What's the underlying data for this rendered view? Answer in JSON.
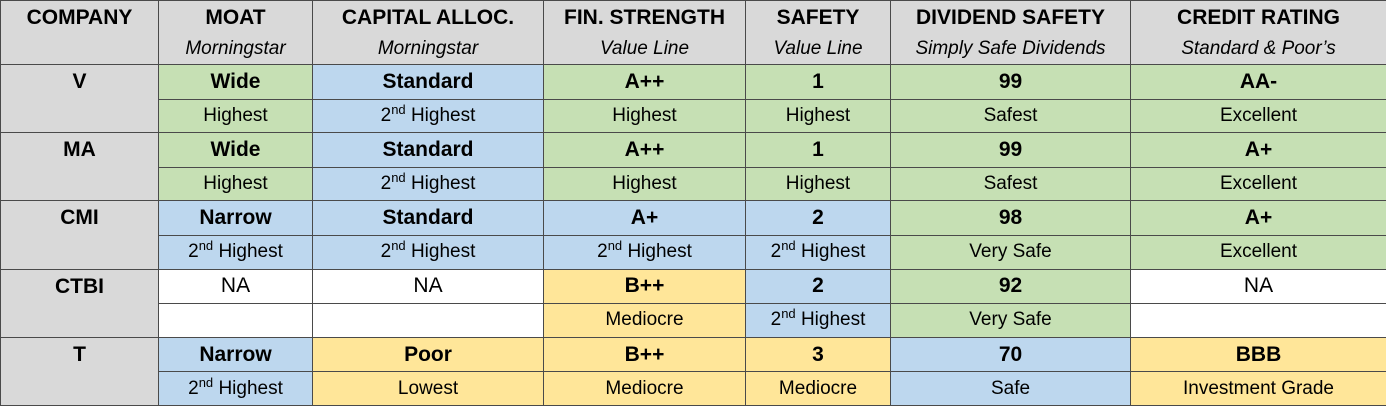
{
  "headers": [
    {
      "title": "COMPANY",
      "source": ""
    },
    {
      "title": "MOAT",
      "source": "Morningstar"
    },
    {
      "title": "CAPITAL ALLOC.",
      "source": "Morningstar"
    },
    {
      "title": "FIN. STRENGTH",
      "source": "Value Line"
    },
    {
      "title": "SAFETY",
      "source": "Value Line"
    },
    {
      "title": "DIVIDEND SAFETY",
      "source": "Simply Safe Dividends"
    },
    {
      "title": "CREDIT RATING",
      "source": "Standard & Poor’s"
    }
  ],
  "colors": {
    "green": "#c6e0b4",
    "blue": "#bdd7ee",
    "yellow": "#ffe699",
    "gray": "#d9d9d9",
    "white": "#ffffff"
  },
  "rows": [
    {
      "company": "V",
      "cells": [
        {
          "value": "Wide",
          "desc": "Highest",
          "color": "green"
        },
        {
          "value": "Standard",
          "desc": "2",
          "desc_sup": "nd",
          "desc_rest": " Highest",
          "color": "blue"
        },
        {
          "value": "A++",
          "desc": "Highest",
          "color": "green"
        },
        {
          "value": "1",
          "desc": "Highest",
          "color": "green"
        },
        {
          "value": "99",
          "desc": "Safest",
          "color": "green"
        },
        {
          "value": "AA-",
          "desc": "Excellent",
          "color": "green"
        }
      ]
    },
    {
      "company": "MA",
      "cells": [
        {
          "value": "Wide",
          "desc": "Highest",
          "color": "green"
        },
        {
          "value": "Standard",
          "desc": "2",
          "desc_sup": "nd",
          "desc_rest": " Highest",
          "color": "blue"
        },
        {
          "value": "A++",
          "desc": "Highest",
          "color": "green"
        },
        {
          "value": "1",
          "desc": "Highest",
          "color": "green"
        },
        {
          "value": "99",
          "desc": "Safest",
          "color": "green"
        },
        {
          "value": "A+",
          "desc": "Excellent",
          "color": "green"
        }
      ]
    },
    {
      "company": "CMI",
      "cells": [
        {
          "value": "Narrow",
          "desc": "2",
          "desc_sup": "nd",
          "desc_rest": " Highest",
          "color": "blue"
        },
        {
          "value": "Standard",
          "desc": "2",
          "desc_sup": "nd",
          "desc_rest": " Highest",
          "color": "blue"
        },
        {
          "value": "A+",
          "desc": "2",
          "desc_sup": "nd",
          "desc_rest": " Highest",
          "color": "blue"
        },
        {
          "value": "2",
          "desc": "2",
          "desc_sup": "nd",
          "desc_rest": " Highest",
          "color": "blue"
        },
        {
          "value": "98",
          "desc": "Very Safe",
          "color": "green"
        },
        {
          "value": "A+",
          "desc": "Excellent",
          "color": "green"
        }
      ]
    },
    {
      "company": "CTBI",
      "cells": [
        {
          "value": "NA",
          "desc": "",
          "color": "white",
          "plain": true
        },
        {
          "value": "NA",
          "desc": "",
          "color": "white",
          "plain": true
        },
        {
          "value": "B++",
          "desc": "Mediocre",
          "color": "yellow"
        },
        {
          "value": "2",
          "desc": "2",
          "desc_sup": "nd",
          "desc_rest": " Highest",
          "color": "blue"
        },
        {
          "value": "92",
          "desc": "Very Safe",
          "color": "green"
        },
        {
          "value": "NA",
          "desc": "",
          "color": "white",
          "plain": true
        }
      ]
    },
    {
      "company": "T",
      "cells": [
        {
          "value": "Narrow",
          "desc": "2",
          "desc_sup": "nd",
          "desc_rest": " Highest",
          "color": "blue"
        },
        {
          "value": "Poor",
          "desc": "Lowest",
          "color": "yellow"
        },
        {
          "value": "B++",
          "desc": "Mediocre",
          "color": "yellow"
        },
        {
          "value": "3",
          "desc": "Mediocre",
          "color": "yellow"
        },
        {
          "value": "70",
          "desc": "Safe",
          "color": "blue"
        },
        {
          "value": "BBB",
          "desc": "Investment Grade",
          "color": "yellow"
        }
      ]
    }
  ]
}
